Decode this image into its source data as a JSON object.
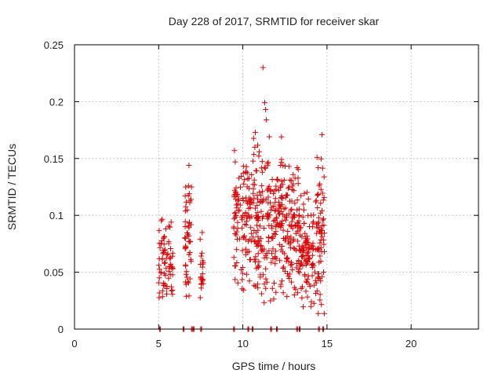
{
  "chart_data": {
    "type": "scatter",
    "title": "Day 228 of 2017, SRMTID for receiver skar",
    "xlabel": "GPS time / hours",
    "ylabel": "SRMTID / TECUs",
    "xlim": [
      0,
      24
    ],
    "ylim": [
      0,
      0.25
    ],
    "x_ticks": [
      0,
      5,
      10,
      15,
      20
    ],
    "x_tick_labels": [
      "0",
      "5",
      "10",
      "15",
      "20"
    ],
    "y_ticks": [
      0,
      0.05,
      0.1,
      0.15,
      0.2,
      0.25
    ],
    "y_tick_labels": [
      "0",
      "0.05",
      "0.1",
      "0.15",
      "0.2",
      "0.25"
    ],
    "grid": true,
    "marker": "+",
    "series": [
      {
        "name": "SRMTID",
        "color": "#e00000",
        "clusters": [
          {
            "x_range": [
              5.0,
              5.85
            ],
            "y_range": [
              0.02,
              0.1
            ],
            "count": 70
          },
          {
            "x_range": [
              6.55,
              6.95
            ],
            "y_range": [
              0.02,
              0.145
            ],
            "count": 50
          },
          {
            "x_range": [
              7.45,
              7.65
            ],
            "y_range": [
              0.015,
              0.09
            ],
            "count": 22
          },
          {
            "x_range": [
              9.45,
              10.55
            ],
            "y_range": [
              0.03,
              0.157
            ],
            "count": 110
          },
          {
            "x_range": [
              10.6,
              11.6
            ],
            "y_range": [
              0.02,
              0.175
            ],
            "count": 120
          },
          {
            "x_range": [
              11.6,
              12.5
            ],
            "y_range": [
              0.02,
              0.17
            ],
            "count": 100
          },
          {
            "x_range": [
              12.5,
              13.3
            ],
            "y_range": [
              0.02,
              0.15
            ],
            "count": 90
          },
          {
            "x_range": [
              13.3,
              14.3
            ],
            "y_range": [
              0.005,
              0.13
            ],
            "count": 110
          },
          {
            "x_range": [
              14.3,
              14.85
            ],
            "y_range": [
              0.005,
              0.17
            ],
            "count": 70
          }
        ],
        "outliers": [
          {
            "x": 11.2,
            "y": 0.23
          },
          {
            "x": 11.3,
            "y": 0.199
          },
          {
            "x": 11.35,
            "y": 0.193
          },
          {
            "x": 11.4,
            "y": 0.184
          },
          {
            "x": 12.3,
            "y": 0.169
          },
          {
            "x": 14.7,
            "y": 0.171
          },
          {
            "x": 6.8,
            "y": 0.144
          },
          {
            "x": 9.5,
            "y": 0.157
          },
          {
            "x": 9.55,
            "y": 0.147
          }
        ],
        "zero_points_x": [
          5.05,
          6.45,
          6.95,
          7.05,
          7.5,
          9.45,
          10.3,
          10.55,
          11.65,
          12.0,
          13.2,
          13.35,
          14.5,
          14.75
        ]
      }
    ]
  }
}
